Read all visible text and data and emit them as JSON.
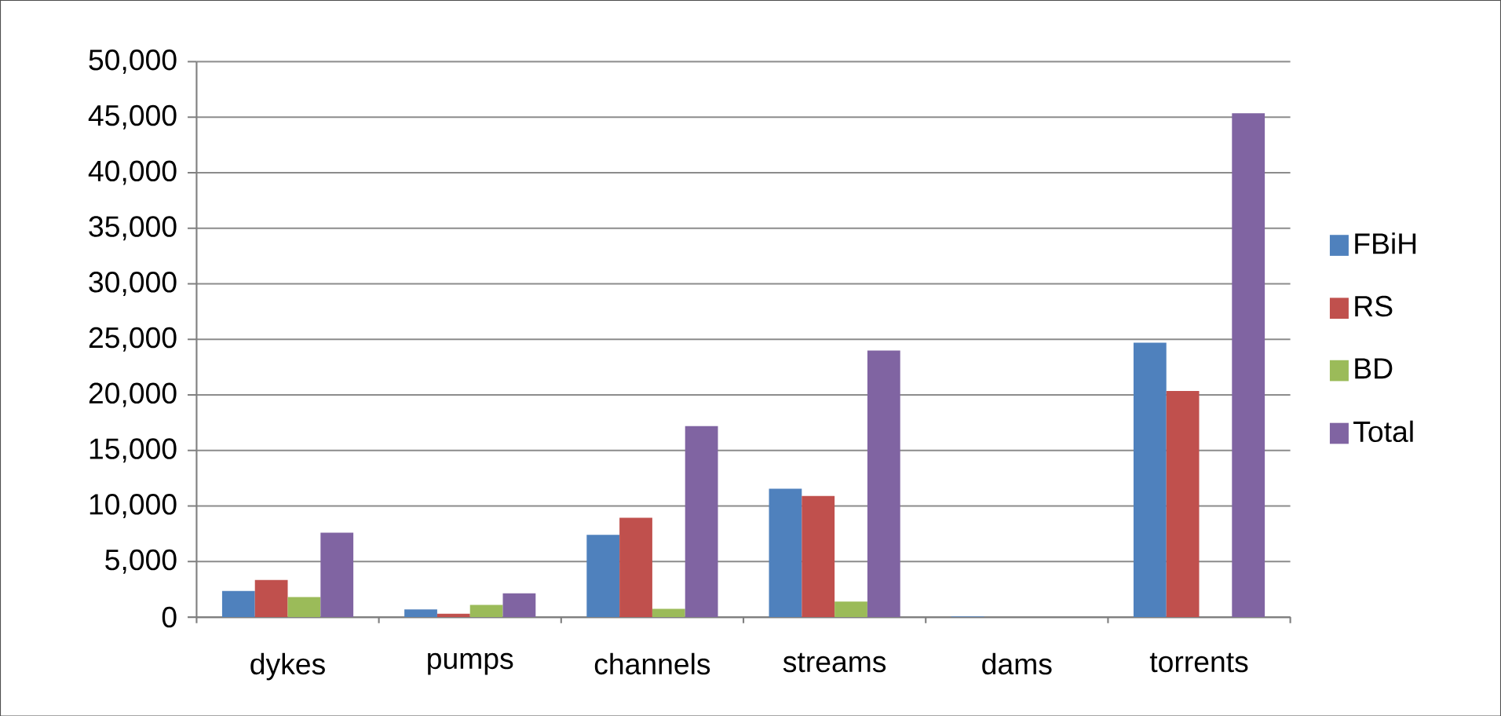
{
  "chart_data": {
    "type": "bar",
    "categories": [
      "dykes",
      "pumps",
      "channels",
      "streams",
      "dams",
      "torrents"
    ],
    "series": [
      {
        "name": "FBiH",
        "color": "#4f81bd",
        "values": [
          2350,
          700,
          7400,
          11550,
          50,
          24700
        ]
      },
      {
        "name": "RS",
        "color": "#c0504d",
        "values": [
          3350,
          300,
          8950,
          10900,
          null,
          20350
        ]
      },
      {
        "name": "BD",
        "color": "#9bbb59",
        "values": [
          1800,
          1100,
          750,
          1400,
          null,
          null
        ]
      },
      {
        "name": "Total",
        "color": "#8064a2",
        "values": [
          7600,
          2150,
          17200,
          24000,
          null,
          45350
        ]
      }
    ],
    "ylim": [
      0,
      50000
    ],
    "yticks": [
      0,
      {
        "value": 5000,
        "label": "5,000"
      },
      {
        "value": 10000,
        "label": "10,000"
      },
      {
        "value": 15000,
        "label": "15,000"
      },
      {
        "value": 20000,
        "label": "20,000"
      },
      {
        "value": 25000,
        "label": "25,000"
      },
      {
        "value": 30000,
        "label": "30,000"
      },
      {
        "value": 35000,
        "label": "35,000"
      },
      {
        "value": 40000,
        "label": "40,000"
      },
      {
        "value": 45000,
        "label": "45,000"
      },
      {
        "value": 50000,
        "label": "50,000"
      }
    ],
    "grid": "y",
    "legend": "right"
  }
}
